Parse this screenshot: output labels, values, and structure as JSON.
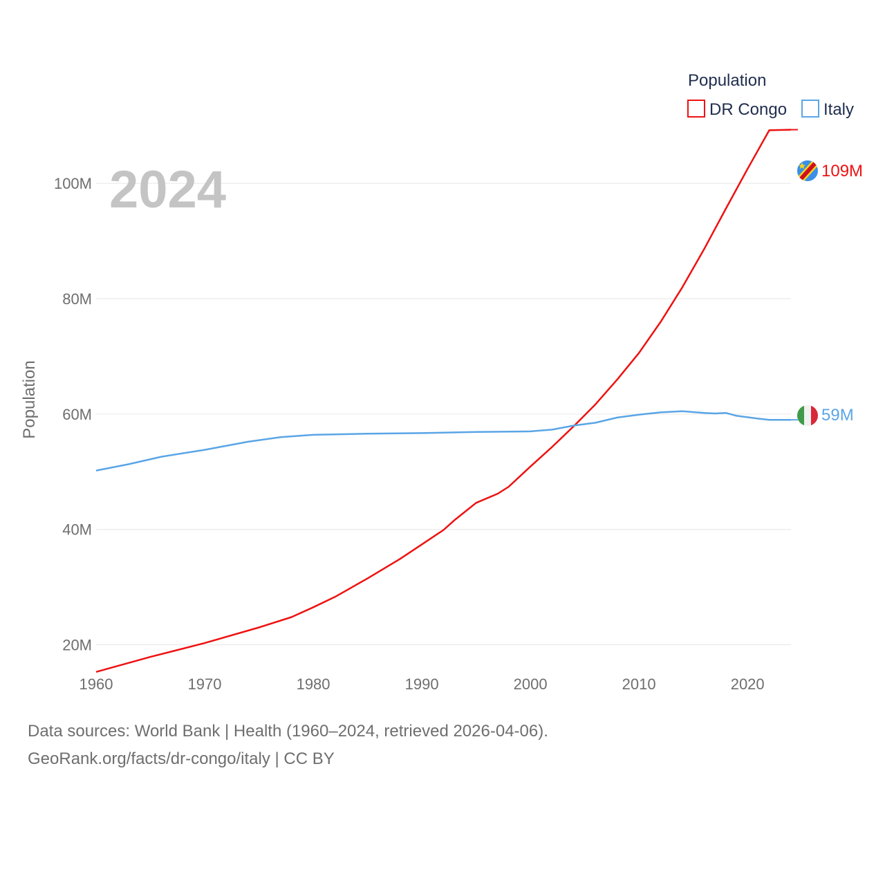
{
  "colors": {
    "congo": "#ee1111",
    "italy": "#5aa5e6",
    "grid": "#e6e6e6"
  },
  "year_label": "2024",
  "legend": {
    "title": "Population",
    "items": [
      "DR Congo",
      "Italy"
    ]
  },
  "end_labels": {
    "congo": "109M",
    "italy": "59M"
  },
  "source": {
    "line1": "Data sources: World Bank | Health (1960–2024, retrieved 2026-04-06).",
    "line2": "GeoRank.org/facts/dr-congo/italy | CC BY"
  },
  "chart_data": {
    "type": "line",
    "title": "",
    "xlabel": "",
    "ylabel": "Population",
    "xlim": [
      1960,
      2024
    ],
    "ylim": [
      10,
      115
    ],
    "x_ticks": [
      1960,
      1970,
      1980,
      1990,
      2000,
      2010,
      2020
    ],
    "y_ticks": [
      20,
      40,
      60,
      80,
      100
    ],
    "y_tick_labels": [
      "20M",
      "40M",
      "60M",
      "80M",
      "100M"
    ],
    "grid": true,
    "legend_position": "top-right",
    "series": [
      {
        "name": "DR Congo",
        "unit": "millions",
        "x": [
          1960,
          1965,
          1970,
          1975,
          1978,
          1980,
          1982,
          1985,
          1988,
          1990,
          1992,
          1993,
          1994,
          1995,
          1997,
          1998,
          2000,
          2002,
          2004,
          2006,
          2008,
          2010,
          2012,
          2014,
          2016,
          2018,
          2020,
          2022,
          2024
        ],
        "values": [
          15.3,
          17.9,
          20.3,
          23.0,
          24.8,
          26.5,
          28.3,
          31.5,
          34.9,
          37.4,
          39.9,
          41.6,
          43.1,
          44.6,
          46.2,
          47.4,
          50.9,
          54.3,
          57.9,
          61.7,
          66.0,
          70.6,
          76.0,
          82.0,
          88.6,
          95.6,
          102.5,
          109.2,
          109.3
        ]
      },
      {
        "name": "Italy",
        "unit": "millions",
        "x": [
          1960,
          1963,
          1966,
          1970,
          1974,
          1977,
          1980,
          1985,
          1990,
          1995,
          2000,
          2002,
          2004,
          2006,
          2008,
          2010,
          2012,
          2014,
          2016,
          2017,
          2018,
          2019,
          2021,
          2022,
          2024
        ],
        "values": [
          50.2,
          51.3,
          52.6,
          53.8,
          55.2,
          56.0,
          56.4,
          56.6,
          56.7,
          56.9,
          57.0,
          57.3,
          58.0,
          58.5,
          59.4,
          59.9,
          60.3,
          60.5,
          60.2,
          60.1,
          60.2,
          59.7,
          59.2,
          59.0,
          59.0
        ]
      }
    ]
  }
}
